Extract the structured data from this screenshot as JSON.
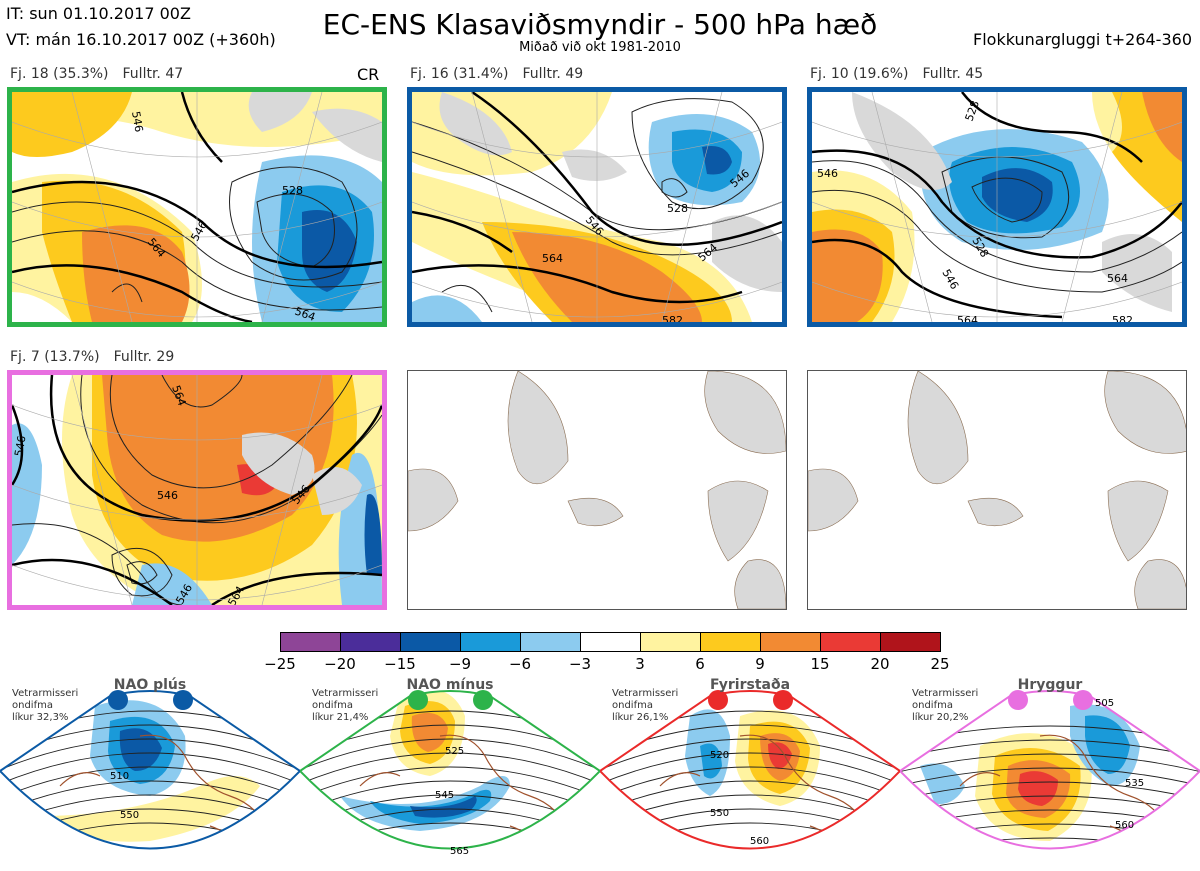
{
  "header": {
    "it": "IT: sun 01.10.2017 00Z",
    "vt": "VT: mán 16.10.2017 00Z  (+360h)",
    "title": "EC-ENS Klasaviðsmyndir - 500 hPa hæð",
    "subtitle": "Miðað við okt 1981-2010",
    "window": "Flokkunargluggi t+264-360"
  },
  "cr_label": "CR",
  "panels": [
    {
      "fj": "Fj. 18 (35.3%)",
      "fulltr": "Fulltr. 47",
      "border": "#2db34a",
      "contours": [
        "546",
        "564",
        "528",
        "546",
        "564"
      ]
    },
    {
      "fj": "Fj. 16 (31.4%)",
      "fulltr": "Fulltr. 49",
      "border": "#0b5aa5",
      "contours": [
        "546",
        "564",
        "528",
        "546",
        "564",
        "582"
      ]
    },
    {
      "fj": "Fj. 10 (19.6%)",
      "fulltr": "Fulltr. 45",
      "border": "#0b5aa5",
      "contours": [
        "528",
        "546",
        "528",
        "546",
        "564",
        "564",
        "582"
      ]
    },
    {
      "fj": "Fj. 7 (13.7%)",
      "fulltr": "Fulltr. 29",
      "border": "#e86fe0",
      "contours": [
        "564",
        "546",
        "546",
        "546",
        "546",
        "564"
      ]
    }
  ],
  "colorbar": {
    "colors": [
      "#8e4597",
      "#4b2d9a",
      "#0b59a6",
      "#1a9ad9",
      "#8ccbef",
      "#ffffff",
      "#fff3a0",
      "#fdca1e",
      "#f28a33",
      "#ea3a35",
      "#b0141b"
    ],
    "labels": [
      "−25",
      "−20",
      "−15",
      "−9",
      "−6",
      "−3",
      "3",
      "6",
      "9",
      "15",
      "20",
      "25"
    ]
  },
  "regimes": [
    {
      "name": "NAO plús",
      "note": "Vetrarmisseri\nondifma\nlíkur 32,3%",
      "color": "#0b5aa5",
      "contours": [
        "510",
        "550"
      ]
    },
    {
      "name": "NAO mínus",
      "note": "Vetrarmisseri\nondifma\nlíkur 21,4%",
      "color": "#2db34a",
      "contours": [
        "525",
        "545",
        "565"
      ]
    },
    {
      "name": "Fyrirstaða",
      "note": "Vetrarmisseri\nondifma\nlíkur 26,1%",
      "color": "#ea2a2a",
      "contours": [
        "520",
        "550",
        "560"
      ]
    },
    {
      "name": "Hryggur",
      "note": "Vetrarmisseri\nondifma\nlíkur 20,2%",
      "color": "#e86fe0",
      "contours": [
        "505",
        "535",
        "560"
      ]
    }
  ]
}
